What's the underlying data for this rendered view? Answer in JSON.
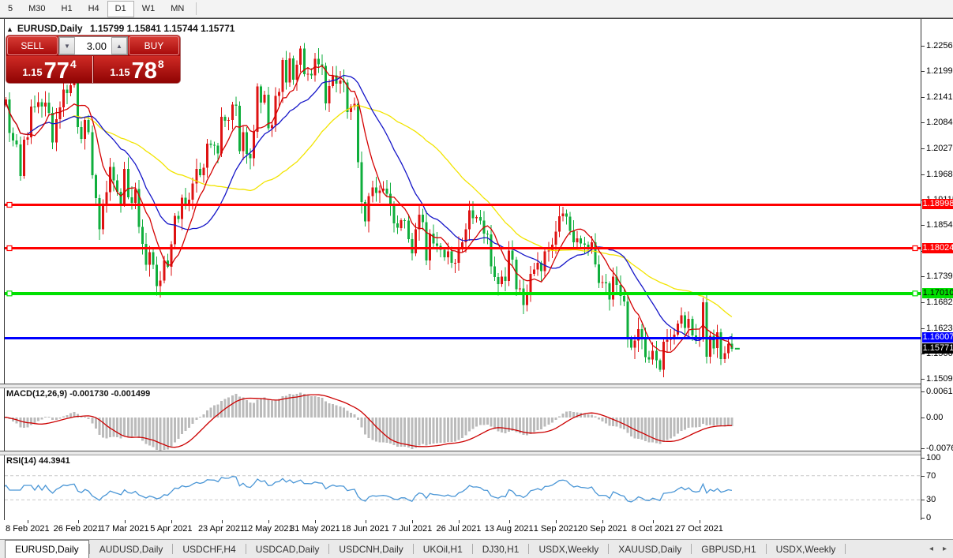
{
  "toolbar": {
    "items": [
      "5",
      "M30",
      "H1",
      "H4",
      "D1",
      "W1",
      "MN"
    ],
    "active": "D1"
  },
  "chart_header": {
    "collapse_icon": "▲",
    "title": "EURUSD,Daily",
    "ohlc_text": "1.15799 1.15841 1.15744 1.15771"
  },
  "one_click": {
    "sell_label": "SELL",
    "buy_label": "BUY",
    "volume": "3.00",
    "volume_down_icon": "▼",
    "volume_up_icon": "▲",
    "sell_price": {
      "small": "1.15",
      "big": "77",
      "sup": "4"
    },
    "buy_price": {
      "small": "1.15",
      "big": "78",
      "sup": "8"
    }
  },
  "price_axis": {
    "ticks": [
      1.22565,
      1.21995,
      1.2141,
      1.2084,
      1.2027,
      1.19685,
      1.19115,
      1.18545,
      1.1796,
      1.1739,
      1.1682,
      1.16235,
      1.15665,
      1.15095
    ]
  },
  "hlines": [
    {
      "price": 1.18998,
      "label": "1.18998",
      "color": "#FF0000",
      "label_fg": "#FFFFFF",
      "thickness": 3,
      "handles": "left"
    },
    {
      "price": 1.18024,
      "label": "1.18024",
      "color": "#FF0000",
      "label_fg": "#FFFFFF",
      "thickness": 3,
      "handles": "both"
    },
    {
      "price": 1.1701,
      "label": "1.17010",
      "color": "#00E000",
      "label_fg": "#000000",
      "thickness": 4,
      "handles": "both"
    },
    {
      "price": 1.16007,
      "label": "1.16007",
      "color": "#0000FF",
      "label_fg": "#FFFFFF",
      "thickness": 3,
      "handles": "none"
    }
  ],
  "current_price": {
    "price": 1.15771,
    "label": "1.15771",
    "bg": "#000000",
    "fg": "#FFFFFF"
  },
  "macd_panel": {
    "label": "MACD(12,26,9) -0.001730 -0.001499",
    "axis_max": "0.006193",
    "axis_zero": "0.00",
    "axis_min": "-0.007625",
    "histogram_color": "#BBBBBB",
    "signal_color": "#CC0000"
  },
  "rsi_panel": {
    "label": "RSI(14) 44.3941",
    "axis": [
      "100",
      "70",
      "30",
      "0"
    ],
    "levels": [
      70,
      30
    ],
    "line_color": "#4A96D6"
  },
  "date_axis": [
    {
      "label": "8 Feb 2021",
      "index": 7
    },
    {
      "label": "26 Feb 2021",
      "index": 21
    },
    {
      "label": "17 Mar 2021",
      "index": 34
    },
    {
      "label": "5 Apr 2021",
      "index": 47
    },
    {
      "label": "23 Apr 2021",
      "index": 61
    },
    {
      "label": "12 May 2021",
      "index": 74
    },
    {
      "label": "31 May 2021",
      "index": 87
    },
    {
      "label": "18 Jun 2021",
      "index": 101
    },
    {
      "label": "7 Jul 2021",
      "index": 114
    },
    {
      "label": "26 Jul 2021",
      "index": 127
    },
    {
      "label": "13 Aug 2021",
      "index": 141
    },
    {
      "label": "1 Sep 2021",
      "index": 154
    },
    {
      "label": "20 Sep 2021",
      "index": 167
    },
    {
      "label": "8 Oct 2021",
      "index": 181
    },
    {
      "label": "27 Oct 2021",
      "index": 194
    }
  ],
  "tabs": {
    "active": "EURUSD,Daily",
    "items": [
      "EURUSD,Daily",
      "AUDUSD,Daily",
      "USDCHF,H4",
      "USDCAD,Daily",
      "USDCNH,Daily",
      "UKOil,H1",
      "DJ30,H1",
      "USDX,Weekly",
      "XAUUSD,Daily",
      "GBPUSD,H1",
      "USDX,Weekly"
    ],
    "nav_left_icon": "◂",
    "nav_right_icon": "▸"
  },
  "colors": {
    "bull_candle": "#DE1212",
    "bear_candle": "#0FAE3C",
    "ma_fast": "#D40000",
    "ma_mid": "#1515C8",
    "ma_slow": "#F2E400"
  },
  "chart_data": {
    "type": "candlestick",
    "symbol": "EURUSD",
    "timeframe": "Daily",
    "first_open": 1.2115,
    "ma_periods": {
      "red": 8,
      "blue": 20,
      "yellow": 45
    },
    "macd_params": [
      12,
      26,
      9
    ],
    "rsi_period": 14,
    "closes": [
      1.2123,
      1.2136,
      1.2061,
      1.2044,
      1.2035,
      1.1964,
      1.2046,
      1.2051,
      1.212,
      1.2119,
      1.213,
      1.212,
      1.2129,
      1.2106,
      1.204,
      1.2092,
      1.2118,
      1.2158,
      1.215,
      1.2168,
      1.2175,
      1.2074,
      1.2048,
      1.209,
      1.2063,
      1.1966,
      1.1915,
      1.1845,
      1.1899,
      1.1928,
      1.1985,
      1.1955,
      1.1929,
      1.19,
      1.198,
      1.1917,
      1.1904,
      1.1935,
      1.185,
      1.1812,
      1.1765,
      1.1794,
      1.1765,
      1.1717,
      1.173,
      1.1775,
      1.1761,
      1.1811,
      1.1875,
      1.1868,
      1.1916,
      1.1899,
      1.1911,
      1.1948,
      1.198,
      1.1966,
      1.1983,
      1.2037,
      1.2034,
      1.2033,
      1.2015,
      1.2097,
      1.2088,
      1.209,
      1.2125,
      1.2122,
      1.202,
      1.2063,
      1.2014,
      1.2004,
      1.2064,
      1.2165,
      1.2129,
      1.2147,
      1.2072,
      1.2079,
      1.2144,
      1.2153,
      1.2225,
      1.2174,
      1.2228,
      1.218,
      1.2214,
      1.225,
      1.2193,
      1.2194,
      1.219,
      1.2227,
      1.2215,
      1.2211,
      1.2127,
      1.2166,
      1.219,
      1.2172,
      1.2179,
      1.2174,
      1.2108,
      1.212,
      1.2126,
      1.1995,
      1.1906,
      1.1863,
      1.1919,
      1.1939,
      1.1926,
      1.1932,
      1.1936,
      1.1925,
      1.1899,
      1.1858,
      1.1848,
      1.1865,
      1.1864,
      1.1823,
      1.1791,
      1.1845,
      1.1878,
      1.1861,
      1.1775,
      1.1835,
      1.1813,
      1.1808,
      1.1799,
      1.1782,
      1.1795,
      1.177,
      1.177,
      1.1804,
      1.1816,
      1.1845,
      1.1887,
      1.187,
      1.1872,
      1.1864,
      1.1835,
      1.1833,
      1.1762,
      1.1738,
      1.1722,
      1.1739,
      1.1729,
      1.1797,
      1.1777,
      1.171,
      1.1712,
      1.1675,
      1.1697,
      1.1745,
      1.1755,
      1.177,
      1.1751,
      1.1795,
      1.1797,
      1.181,
      1.184,
      1.1874,
      1.188,
      1.1873,
      1.1841,
      1.1816,
      1.1825,
      1.1813,
      1.181,
      1.1805,
      1.1816,
      1.1766,
      1.1725,
      1.1726,
      1.1724,
      1.1687,
      1.1739,
      1.172,
      1.1695,
      1.1683,
      1.1598,
      1.1579,
      1.1595,
      1.1621,
      1.1599,
      1.1558,
      1.1553,
      1.1572,
      1.1551,
      1.153,
      1.1593,
      1.1597,
      1.1601,
      1.1609,
      1.1633,
      1.1652,
      1.1624,
      1.1644,
      1.1607,
      1.1597,
      1.1603,
      1.1681,
      1.1559,
      1.1606,
      1.1578,
      1.1614,
      1.1554,
      1.1567,
      1.1588,
      1.1577
    ]
  }
}
